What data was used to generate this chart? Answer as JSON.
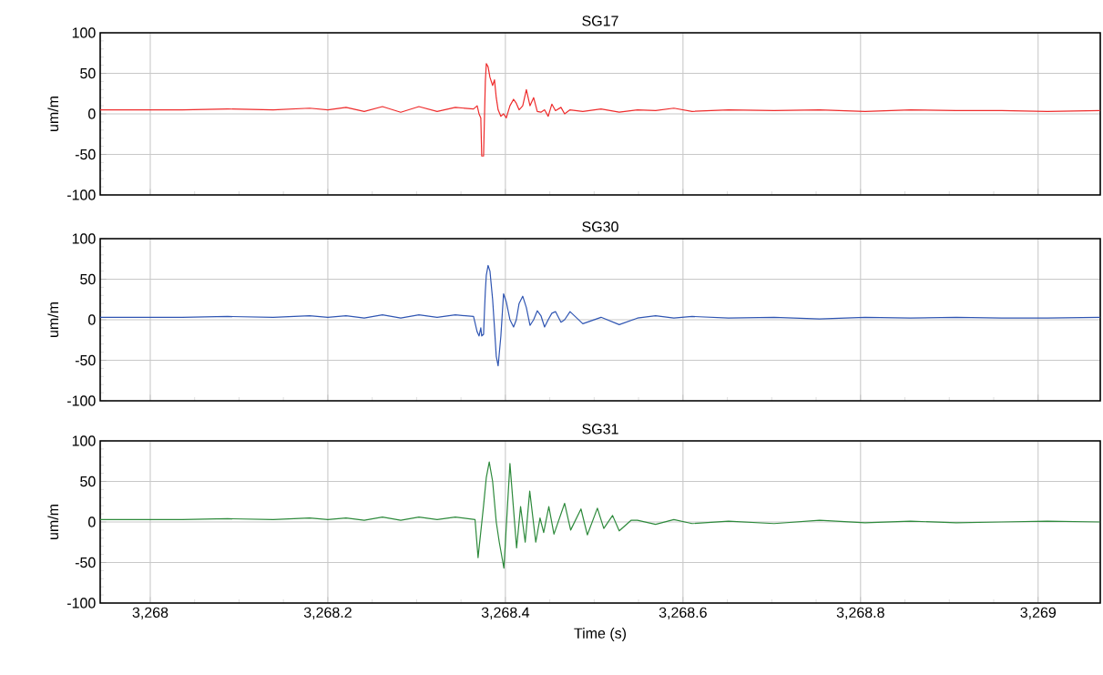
{
  "chart_data": [
    {
      "type": "line",
      "title": "SG17",
      "ylabel": "um/m",
      "color": "#ee2b2b",
      "grid": true,
      "tick_labels": "y",
      "xlim": [
        3267.9436,
        3269.07
      ],
      "ylim": [
        -100,
        100
      ],
      "yticks": [
        -100,
        -50,
        0,
        50,
        100
      ],
      "xticks": [
        {
          "value": 3268,
          "label": null
        },
        {
          "value": 3268.2,
          "label": null
        },
        {
          "value": 3268.4,
          "label": null
        },
        {
          "value": 3268.6,
          "label": null
        },
        {
          "value": 3268.8,
          "label": null
        },
        {
          "value": 3269,
          "label": null
        }
      ],
      "x": [
        3267.9436,
        3267.9846,
        3268.0359,
        3268.0872,
        3268.1385,
        3268.1795,
        3268.2,
        3268.2205,
        3268.241,
        3268.2615,
        3268.2821,
        3268.3026,
        3268.3231,
        3268.3436,
        3268.3641,
        3268.3682,
        3268.3703,
        3268.3723,
        3268.3733,
        3268.3754,
        3268.3764,
        3268.3774,
        3268.3785,
        3268.3805,
        3268.3826,
        3268.3856,
        3268.3877,
        3268.3897,
        3268.3918,
        3268.3949,
        3268.3979,
        3268.401,
        3268.4051,
        3268.4092,
        3268.4123,
        3268.4154,
        3268.4195,
        3268.4236,
        3268.4277,
        3268.4318,
        3268.4359,
        3268.44,
        3268.4441,
        3268.4482,
        3268.4523,
        3268.4564,
        3268.4626,
        3268.4667,
        3268.4728,
        3268.4872,
        3268.5077,
        3268.5282,
        3268.5487,
        3268.5692,
        3268.5897,
        3268.6103,
        3268.6513,
        3268.7026,
        3268.7538,
        3268.8051,
        3268.8564,
        3268.9077,
        3268.959,
        3269.0103,
        3269.0697
      ],
      "values": [
        5,
        5,
        5,
        6,
        5,
        7,
        5,
        8,
        3,
        9,
        2,
        9,
        3,
        8,
        6,
        10,
        0,
        -5,
        -52,
        -52,
        -5,
        40,
        62,
        58,
        45,
        35,
        42,
        20,
        5,
        -3,
        0,
        -5,
        10,
        18,
        13,
        5,
        10,
        30,
        10,
        20,
        3,
        2,
        5,
        -3,
        12,
        4,
        8,
        0,
        5,
        3,
        6,
        2,
        5,
        4,
        7,
        3,
        5,
        4,
        5,
        3,
        5,
        4,
        4,
        3,
        4
      ]
    },
    {
      "type": "line",
      "title": "SG30",
      "ylabel": "um/m",
      "color": "#2f55b2",
      "grid": true,
      "tick_labels": "y",
      "xlim": [
        3267.9436,
        3269.07
      ],
      "ylim": [
        -100,
        100
      ],
      "yticks": [
        -100,
        -50,
        0,
        50,
        100
      ],
      "xticks": [
        {
          "value": 3268,
          "label": null
        },
        {
          "value": 3268.2,
          "label": null
        },
        {
          "value": 3268.4,
          "label": null
        },
        {
          "value": 3268.6,
          "label": null
        },
        {
          "value": 3268.8,
          "label": null
        },
        {
          "value": 3269,
          "label": null
        }
      ],
      "x": [
        3267.9436,
        3267.9846,
        3268.0359,
        3268.0872,
        3268.1385,
        3268.1795,
        3268.2,
        3268.2205,
        3268.241,
        3268.2615,
        3268.2821,
        3268.3026,
        3268.3231,
        3268.3436,
        3268.3641,
        3268.3682,
        3268.3703,
        3268.3723,
        3268.3733,
        3268.3754,
        3268.3764,
        3268.3774,
        3268.3785,
        3268.3805,
        3268.3826,
        3268.3856,
        3268.3877,
        3268.3897,
        3268.3918,
        3268.3949,
        3268.3979,
        3268.401,
        3268.4051,
        3268.4092,
        3268.4123,
        3268.4154,
        3268.4195,
        3268.4236,
        3268.4277,
        3268.4318,
        3268.4359,
        3268.44,
        3268.4441,
        3268.4482,
        3268.4523,
        3268.4564,
        3268.4626,
        3268.4667,
        3268.4728,
        3268.4872,
        3268.5077,
        3268.5282,
        3268.5487,
        3268.5692,
        3268.5897,
        3268.6103,
        3268.6513,
        3268.7026,
        3268.7538,
        3268.8051,
        3268.8564,
        3268.9077,
        3268.959,
        3269.0103,
        3269.0697
      ],
      "values": [
        3,
        3,
        3,
        4,
        3,
        5,
        3,
        5,
        2,
        6,
        2,
        6,
        3,
        6,
        4,
        -15,
        -20,
        -10,
        -20,
        -18,
        10,
        35,
        55,
        67,
        60,
        25,
        -10,
        -45,
        -57,
        -20,
        32,
        22,
        0,
        -9,
        0,
        20,
        29,
        15,
        -7,
        0,
        11,
        5,
        -9,
        0,
        8,
        10,
        -3,
        0,
        10,
        -5,
        3,
        -6,
        2,
        5,
        2,
        4,
        2,
        3,
        1,
        3,
        2,
        3,
        2,
        2,
        3
      ]
    },
    {
      "type": "line",
      "title": "SG31",
      "ylabel": "um/m",
      "xlabel": "Time (s)",
      "color": "#2e8a3c",
      "grid": true,
      "xlim": [
        3267.9436,
        3269.07
      ],
      "ylim": [
        -100,
        100
      ],
      "yticks": [
        -100,
        -50,
        0,
        50,
        100
      ],
      "xticks": [
        {
          "value": 3268,
          "label": "3,268"
        },
        {
          "value": 3268.2,
          "label": "3,268.2"
        },
        {
          "value": 3268.4,
          "label": "3,268.4"
        },
        {
          "value": 3268.6,
          "label": "3,268.6"
        },
        {
          "value": 3268.8,
          "label": "3,268.8"
        },
        {
          "value": 3269,
          "label": "3,269"
        }
      ],
      "x": [
        3267.9436,
        3267.9846,
        3268.0359,
        3268.0872,
        3268.1385,
        3268.1795,
        3268.2,
        3268.2205,
        3268.241,
        3268.2615,
        3268.2821,
        3268.3026,
        3268.3231,
        3268.3436,
        3268.3658,
        3268.3692,
        3268.3754,
        3268.3785,
        3268.3818,
        3268.3856,
        3268.3897,
        3268.3931,
        3268.3983,
        3268.4051,
        3268.4126,
        3268.4171,
        3268.4223,
        3268.4274,
        3268.4342,
        3268.439,
        3268.4431,
        3268.4489,
        3268.4547,
        3268.4667,
        3268.4735,
        3268.4851,
        3268.4923,
        3268.5036,
        3268.5108,
        3268.5207,
        3268.5282,
        3268.5415,
        3268.5487,
        3268.5692,
        3268.5897,
        3268.6103,
        3268.6513,
        3268.7026,
        3268.7538,
        3268.8051,
        3268.8564,
        3268.9077,
        3268.959,
        3269.0103,
        3269.0697
      ],
      "values": [
        3,
        3,
        3,
        4,
        3,
        5,
        3,
        5,
        2,
        6,
        2,
        6,
        3,
        6,
        3,
        -44,
        20,
        55,
        74,
        50,
        0,
        -25,
        -57,
        72,
        -32,
        19,
        -25,
        38,
        -25,
        5,
        -13,
        19,
        -15,
        23,
        -10,
        16,
        -16,
        17,
        -8,
        8,
        -11,
        2,
        2,
        -3,
        3,
        -2,
        1,
        -2,
        2,
        -1,
        1,
        -1,
        0,
        1,
        0
      ]
    }
  ]
}
